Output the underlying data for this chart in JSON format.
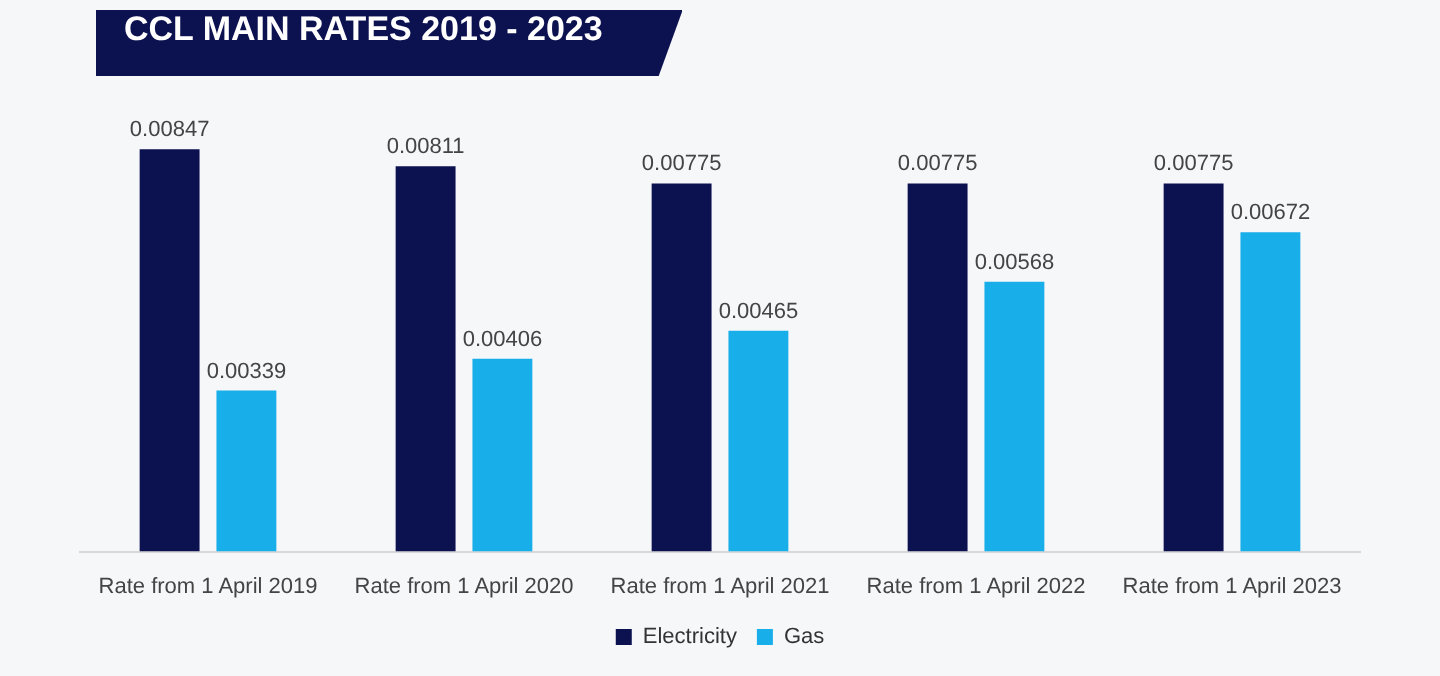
{
  "chart_data": {
    "type": "bar",
    "title": "CCL MAIN RATES 2019 - 2023",
    "categories": [
      "Rate from 1 April 2019",
      "Rate from 1 April 2020",
      "Rate from 1 April 2021",
      "Rate from 1 April 2022",
      "Rate from 1 April 2023"
    ],
    "series": [
      {
        "name": "Electricity",
        "color": "#0c1150",
        "values": [
          0.00847,
          0.00811,
          0.00775,
          0.00775,
          0.00775
        ]
      },
      {
        "name": "Gas",
        "color": "#17aeea",
        "values": [
          0.00339,
          0.00406,
          0.00465,
          0.00568,
          0.00672
        ]
      }
    ],
    "data_labels": true,
    "legend": "bottom",
    "grid": false,
    "tick_labels": "x"
  }
}
